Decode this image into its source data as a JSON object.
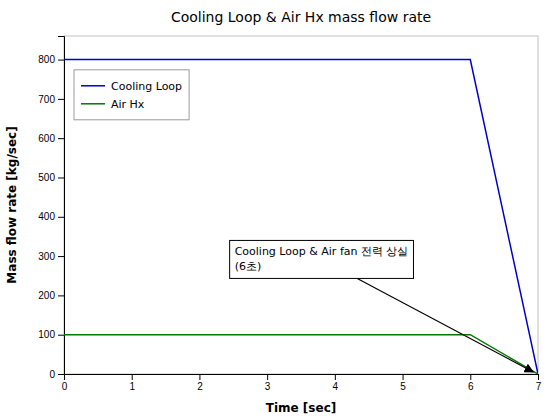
{
  "chart_data": {
    "type": "line",
    "title": "Cooling Loop & Air Hx mass flow rate",
    "x_label": "Time [sec]",
    "y_label": "Mass flow rate [kg/sec]",
    "x": [
      0,
      6.0,
      7.0
    ],
    "series": [
      {
        "name": "Cooling Loop",
        "color": "#0000CC",
        "values": [
          800,
          800,
          0
        ]
      },
      {
        "name": "Air Hx",
        "color": "#007700",
        "values": [
          100,
          100,
          0
        ]
      }
    ],
    "xlim": [
      0,
      7
    ],
    "ylim": [
      0,
      860
    ],
    "xticks": [
      0,
      1,
      2,
      3,
      4,
      5,
      6,
      7
    ],
    "yticks": [
      0,
      100,
      200,
      300,
      400,
      500,
      600,
      700,
      800
    ],
    "grid": false,
    "legend": "upper left",
    "annotations": [
      {
        "text": "Cooling Loop & Air fan 전력 상실\n(6초)",
        "x": 6.93,
        "y": 5,
        "color": "black"
      }
    ]
  }
}
